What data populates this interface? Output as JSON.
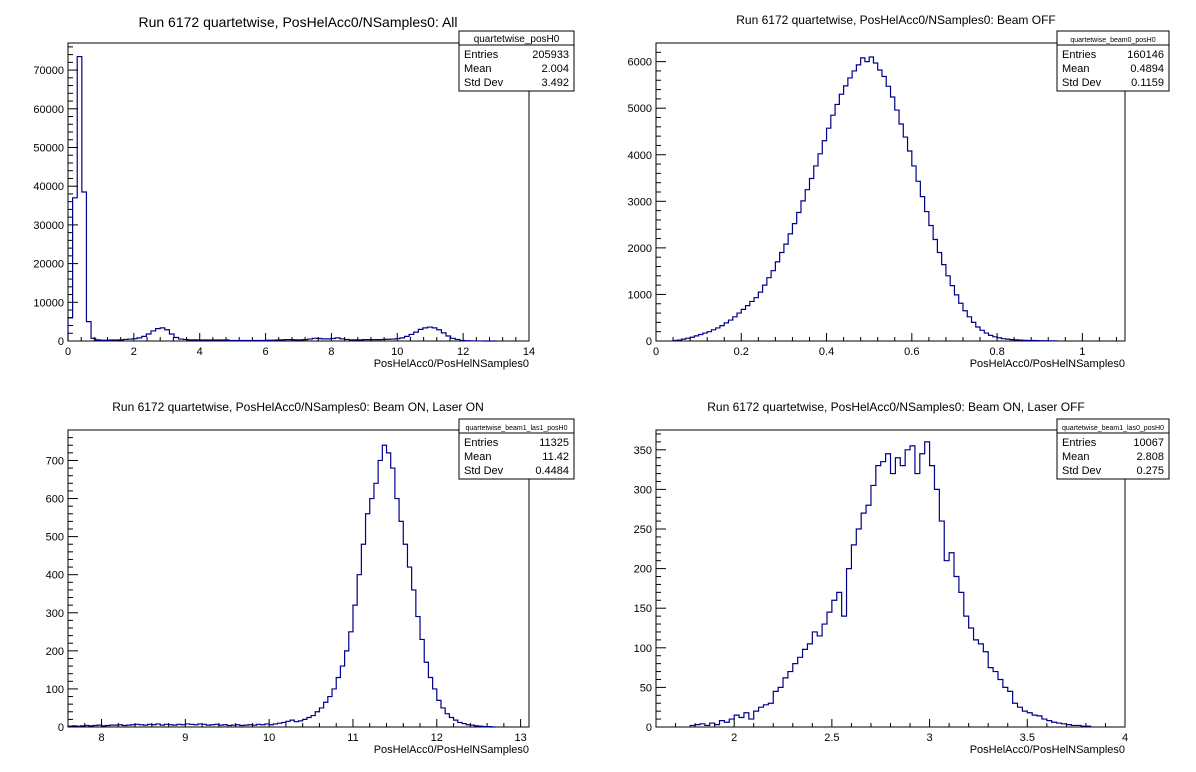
{
  "colors": {
    "line": "#00008b",
    "axis": "#000000",
    "background": "#ffffff"
  },
  "chart_data": [
    {
      "type": "histogram",
      "title": "Run 6172 quartetwise, PosHelAcc0/NSamples0: All",
      "xlabel": "PosHelAcc0/PosHelNSamples0",
      "xlim": [
        0,
        14
      ],
      "ylim": [
        0,
        77000
      ],
      "xticks": [
        "0",
        "2",
        "4",
        "6",
        "8",
        "10",
        "12",
        "14"
      ],
      "yticks": [
        "0",
        "10000",
        "20000",
        "30000",
        "40000",
        "50000",
        "60000",
        "70000"
      ],
      "stats": {
        "name": "quartetwise_posH0",
        "entries": "205933",
        "mean": "2.004",
        "std_dev": "3.492"
      },
      "bin_width": 0.14,
      "x": [
        0.07,
        0.21,
        0.35,
        0.49,
        0.63,
        0.77,
        0.91,
        1.05,
        1.19,
        1.33,
        1.47,
        1.61,
        1.75,
        1.89,
        2.03,
        2.17,
        2.31,
        2.45,
        2.59,
        2.73,
        2.87,
        3.01,
        3.15,
        3.29,
        3.43,
        3.57,
        3.71,
        3.85,
        3.99,
        4.13,
        4.27,
        4.41,
        4.55,
        4.69,
        4.83,
        4.97,
        5.11,
        5.25,
        5.39,
        5.53,
        5.67,
        5.81,
        5.95,
        6.09,
        6.23,
        6.37,
        6.51,
        6.65,
        6.79,
        6.93,
        7.07,
        7.21,
        7.35,
        7.49,
        7.63,
        7.77,
        7.91,
        8.05,
        8.19,
        8.33,
        8.47,
        8.61,
        8.75,
        8.89,
        9.03,
        9.17,
        9.31,
        9.45,
        9.59,
        9.73,
        9.87,
        10.01,
        10.15,
        10.29,
        10.43,
        10.57,
        10.71,
        10.85,
        10.99,
        11.13,
        11.27,
        11.41,
        11.55,
        11.69,
        11.83,
        11.97,
        12.11,
        12.25,
        12.39,
        12.53,
        12.67,
        12.81,
        12.95
      ],
      "values": [
        6000,
        37000,
        73500,
        38500,
        5000,
        700,
        300,
        200,
        200,
        250,
        250,
        300,
        400,
        500,
        600,
        800,
        1200,
        1800,
        2600,
        3200,
        3400,
        2900,
        1800,
        900,
        500,
        400,
        300,
        300,
        250,
        250,
        250,
        250,
        250,
        250,
        250,
        150,
        150,
        150,
        150,
        150,
        150,
        150,
        150,
        200,
        200,
        250,
        300,
        350,
        350,
        300,
        300,
        350,
        500,
        700,
        650,
        550,
        550,
        650,
        800,
        550,
        400,
        300,
        300,
        300,
        350,
        350,
        350,
        350,
        400,
        450,
        500,
        600,
        800,
        1200,
        1700,
        2300,
        3000,
        3400,
        3600,
        3400,
        2900,
        2100,
        1300,
        700,
        400,
        150,
        80,
        40,
        20,
        10,
        5,
        0,
        0
      ]
    },
    {
      "type": "histogram",
      "title": "Run 6172 quartetwise, PosHelAcc0/NSamples0: Beam OFF",
      "xlabel": "PosHelAcc0/PosHelNSamples0",
      "xlim": [
        0,
        1.1
      ],
      "ylim": [
        0,
        6400
      ],
      "xticks": [
        "0",
        "0.2",
        "0.4",
        "0.6",
        "0.8",
        "1"
      ],
      "yticks": [
        "0",
        "1000",
        "2000",
        "3000",
        "4000",
        "5000",
        "6000"
      ],
      "stats": {
        "name": "quartetwise_beam0_posH0",
        "entries": "160146",
        "mean": "0.4894",
        "std_dev": "0.1159"
      },
      "bin_width": 0.01,
      "x": [
        0.045,
        0.055,
        0.065,
        0.075,
        0.085,
        0.095,
        0.105,
        0.115,
        0.125,
        0.135,
        0.145,
        0.155,
        0.165,
        0.175,
        0.185,
        0.195,
        0.205,
        0.215,
        0.225,
        0.235,
        0.245,
        0.255,
        0.265,
        0.275,
        0.285,
        0.295,
        0.305,
        0.315,
        0.325,
        0.335,
        0.345,
        0.355,
        0.365,
        0.375,
        0.385,
        0.395,
        0.405,
        0.415,
        0.425,
        0.435,
        0.445,
        0.455,
        0.465,
        0.475,
        0.485,
        0.495,
        0.505,
        0.515,
        0.525,
        0.535,
        0.545,
        0.555,
        0.565,
        0.575,
        0.585,
        0.595,
        0.605,
        0.615,
        0.625,
        0.635,
        0.645,
        0.655,
        0.665,
        0.675,
        0.685,
        0.695,
        0.705,
        0.715,
        0.725,
        0.735,
        0.745,
        0.755,
        0.765,
        0.775,
        0.785,
        0.795,
        0.805,
        0.815,
        0.825,
        0.835,
        0.845,
        0.855,
        0.865,
        0.875,
        0.885,
        0.895,
        0.905,
        0.915,
        0.925,
        0.935
      ],
      "values": [
        10,
        20,
        40,
        60,
        80,
        110,
        140,
        170,
        200,
        240,
        280,
        330,
        390,
        450,
        520,
        600,
        680,
        760,
        850,
        930,
        1050,
        1200,
        1360,
        1510,
        1700,
        1900,
        2080,
        2300,
        2520,
        2760,
        3010,
        3250,
        3490,
        3760,
        4020,
        4300,
        4570,
        4850,
        5080,
        5300,
        5480,
        5650,
        5800,
        5930,
        6080,
        6000,
        6100,
        5970,
        5820,
        5680,
        5470,
        5240,
        4960,
        4660,
        4380,
        4080,
        3760,
        3430,
        3100,
        2780,
        2480,
        2180,
        1900,
        1640,
        1400,
        1190,
        990,
        810,
        650,
        520,
        400,
        300,
        230,
        170,
        120,
        90,
        70,
        50,
        40,
        30,
        25,
        20,
        15,
        12,
        10,
        8,
        6,
        5,
        4,
        3
      ]
    },
    {
      "type": "histogram",
      "title": "Run 6172 quartetwise, PosHelAcc0/NSamples0: Beam ON, Laser ON",
      "xlabel": "PosHelAcc0/PosHelNSamples0",
      "xlim": [
        7.6,
        13.1
      ],
      "ylim": [
        0,
        780
      ],
      "xticks": [
        "8",
        "9",
        "10",
        "11",
        "12",
        "13"
      ],
      "yticks": [
        "0",
        "100",
        "200",
        "300",
        "400",
        "500",
        "600",
        "700"
      ],
      "stats": {
        "name": "quartetwise_beam1_las1_posH0",
        "entries": "11325",
        "mean": "11.42",
        "std_dev": "0.4484"
      },
      "bin_width": 0.05,
      "x": [
        7.625,
        7.675,
        7.725,
        7.775,
        7.825,
        7.875,
        7.925,
        7.975,
        8.025,
        8.075,
        8.125,
        8.175,
        8.225,
        8.275,
        8.325,
        8.375,
        8.425,
        8.475,
        8.525,
        8.575,
        8.625,
        8.675,
        8.725,
        8.775,
        8.825,
        8.875,
        8.925,
        8.975,
        9.025,
        9.075,
        9.125,
        9.175,
        9.225,
        9.275,
        9.325,
        9.375,
        9.425,
        9.475,
        9.525,
        9.575,
        9.625,
        9.675,
        9.725,
        9.775,
        9.825,
        9.875,
        9.925,
        9.975,
        10.025,
        10.075,
        10.125,
        10.175,
        10.225,
        10.275,
        10.325,
        10.375,
        10.425,
        10.475,
        10.525,
        10.575,
        10.625,
        10.675,
        10.725,
        10.775,
        10.825,
        10.875,
        10.925,
        10.975,
        11.025,
        11.075,
        11.125,
        11.175,
        11.225,
        11.275,
        11.325,
        11.375,
        11.425,
        11.475,
        11.525,
        11.575,
        11.625,
        11.675,
        11.725,
        11.775,
        11.825,
        11.875,
        11.925,
        11.975,
        12.025,
        12.075,
        12.125,
        12.175,
        12.225,
        12.275,
        12.325,
        12.375,
        12.425,
        12.475,
        12.525,
        12.575,
        12.625,
        12.675
      ],
      "values": [
        2,
        3,
        2,
        3,
        4,
        3,
        4,
        5,
        3,
        4,
        5,
        5,
        6,
        4,
        5,
        6,
        7,
        6,
        5,
        7,
        6,
        8,
        5,
        7,
        6,
        5,
        7,
        6,
        8,
        7,
        6,
        8,
        7,
        5,
        6,
        7,
        5,
        6,
        4,
        5,
        6,
        4,
        5,
        6,
        5,
        7,
        6,
        8,
        6,
        8,
        10,
        12,
        15,
        18,
        14,
        16,
        20,
        25,
        30,
        40,
        50,
        65,
        80,
        100,
        130,
        160,
        200,
        250,
        320,
        400,
        480,
        560,
        600,
        640,
        700,
        740,
        720,
        680,
        600,
        540,
        480,
        420,
        360,
        290,
        230,
        170,
        130,
        100,
        70,
        50,
        35,
        25,
        18,
        12,
        9,
        6,
        5,
        3,
        2,
        1,
        1,
        0
      ]
    },
    {
      "type": "histogram",
      "title": "Run 6172 quartetwise, PosHelAcc0/NSamples0: Beam ON, Laser OFF",
      "xlabel": "PosHelAcc0/PosHelNSamples0",
      "xlim": [
        1.6,
        4.0
      ],
      "ylim": [
        0,
        375
      ],
      "xticks": [
        "2",
        "2.5",
        "3",
        "3.5",
        "4"
      ],
      "yticks": [
        "0",
        "50",
        "100",
        "150",
        "200",
        "250",
        "300",
        "350"
      ],
      "stats": {
        "name": "quartetwise_beam1_las0_posH0",
        "entries": "10067",
        "mean": "2.808",
        "std_dev": "0.275"
      },
      "bin_width": 0.025,
      "x": [
        1.7875,
        1.8125,
        1.8375,
        1.8625,
        1.8875,
        1.9125,
        1.9375,
        1.9625,
        1.9875,
        2.0125,
        2.0375,
        2.0625,
        2.0875,
        2.1125,
        2.1375,
        2.1625,
        2.1875,
        2.2125,
        2.2375,
        2.2625,
        2.2875,
        2.3125,
        2.3375,
        2.3625,
        2.3875,
        2.4125,
        2.4375,
        2.4625,
        2.4875,
        2.5125,
        2.5375,
        2.5625,
        2.5875,
        2.6125,
        2.6375,
        2.6625,
        2.6875,
        2.7125,
        2.7375,
        2.7625,
        2.7875,
        2.8125,
        2.8375,
        2.8625,
        2.8875,
        2.9125,
        2.9375,
        2.9625,
        2.9875,
        3.0125,
        3.0375,
        3.0625,
        3.0875,
        3.1125,
        3.1375,
        3.1625,
        3.1875,
        3.2125,
        3.2375,
        3.2625,
        3.2875,
        3.3125,
        3.3375,
        3.3625,
        3.3875,
        3.4125,
        3.4375,
        3.4625,
        3.4875,
        3.5125,
        3.5375,
        3.5625,
        3.5875,
        3.6125,
        3.6375,
        3.6625,
        3.6875,
        3.7125,
        3.7375,
        3.7625,
        3.7875,
        3.8125
      ],
      "values": [
        2,
        3,
        4,
        2,
        5,
        3,
        8,
        6,
        10,
        15,
        12,
        18,
        10,
        20,
        25,
        28,
        30,
        45,
        50,
        62,
        70,
        80,
        88,
        98,
        105,
        120,
        115,
        130,
        145,
        160,
        170,
        140,
        200,
        230,
        250,
        270,
        280,
        305,
        330,
        335,
        345,
        320,
        340,
        330,
        350,
        355,
        320,
        345,
        360,
        330,
        300,
        260,
        210,
        220,
        190,
        170,
        140,
        125,
        110,
        105,
        95,
        75,
        70,
        60,
        50,
        45,
        30,
        25,
        20,
        18,
        15,
        14,
        10,
        8,
        6,
        5,
        4,
        3,
        2,
        2,
        1,
        1
      ]
    }
  ]
}
